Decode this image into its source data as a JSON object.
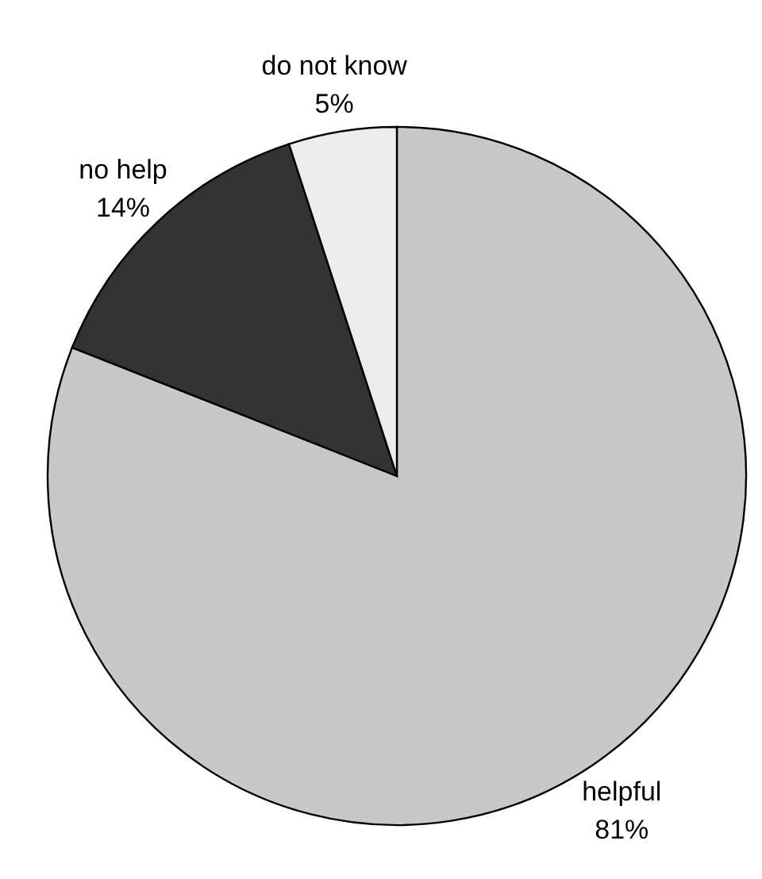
{
  "chart_data": {
    "type": "pie",
    "categories": [
      "helpful",
      "no help",
      "do not know"
    ],
    "values": [
      81,
      14,
      5
    ],
    "colors": [
      "#c8c8c8",
      "#333333",
      "#ececec"
    ],
    "value_labels": [
      "81%",
      "14%",
      "5%"
    ]
  }
}
